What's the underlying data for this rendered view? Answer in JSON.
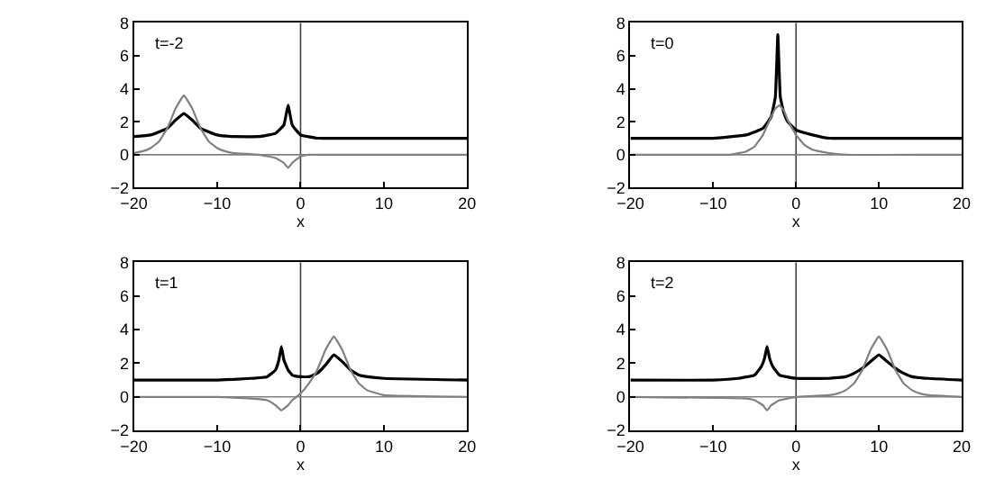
{
  "chart_data": [
    {
      "type": "line",
      "xlabel": "x",
      "annotations": [
        "t=-2"
      ],
      "xlim": [
        -20,
        20
      ],
      "xticks": [
        -20,
        -10,
        0,
        10,
        20
      ],
      "ylim": [
        -2,
        8
      ],
      "yticks": [
        -2,
        0,
        2,
        4,
        6,
        8
      ],
      "grid": false,
      "marker": "none",
      "line_style": "solid",
      "ref_lines": [
        {
          "axis": "x",
          "value": 0,
          "color": "#404040"
        },
        {
          "axis": "y",
          "value": 0,
          "color": "#808080"
        }
      ],
      "series": [
        {
          "color": "#000000",
          "x": [
            -20,
            -18,
            -16,
            -15,
            -14,
            -13,
            -12,
            -10,
            -8,
            -5,
            -3,
            -2,
            -1.5,
            -1,
            0,
            2,
            5,
            10,
            20
          ],
          "values": [
            1.1,
            1.2,
            1.6,
            2.1,
            2.5,
            2.1,
            1.6,
            1.2,
            1.1,
            1.1,
            1.3,
            1.8,
            3.0,
            1.8,
            1.2,
            1.0,
            1.0,
            1.0,
            1.0
          ]
        },
        {
          "color": "#808080",
          "x": [
            -20,
            -19,
            -18,
            -17,
            -16,
            -15,
            -14,
            -13,
            -12,
            -11,
            -10,
            -9,
            -8,
            -5,
            -3,
            -2,
            -1.5,
            -1,
            0,
            1,
            3,
            10,
            20
          ],
          "values": [
            0.1,
            0.2,
            0.4,
            0.8,
            1.6,
            2.8,
            3.6,
            2.8,
            1.6,
            0.8,
            0.4,
            0.2,
            0.1,
            0,
            -0.2,
            -0.5,
            -0.8,
            -0.5,
            -0.1,
            0,
            0,
            0,
            0
          ]
        }
      ]
    },
    {
      "type": "line",
      "xlabel": "x",
      "annotations": [
        "t=0"
      ],
      "xlim": [
        -20,
        20
      ],
      "xticks": [
        -20,
        -10,
        0,
        10,
        20
      ],
      "ylim": [
        -2,
        8
      ],
      "yticks": [
        -2,
        0,
        2,
        4,
        6,
        8
      ],
      "grid": false,
      "marker": "none",
      "line_style": "solid",
      "ref_lines": [
        {
          "axis": "x",
          "value": 0,
          "color": "#404040"
        },
        {
          "axis": "y",
          "value": 0,
          "color": "#808080"
        }
      ],
      "series": [
        {
          "color": "#000000",
          "x": [
            -20,
            -10,
            -6,
            -4,
            -3,
            -2.5,
            -2.2,
            -1.9,
            -1.5,
            -1,
            0,
            2,
            4,
            10,
            20
          ],
          "values": [
            1.0,
            1.0,
            1.2,
            1.6,
            2.3,
            3.5,
            7.3,
            3.5,
            2.6,
            2.0,
            1.5,
            1.2,
            1.0,
            1.0,
            1.0
          ]
        },
        {
          "color": "#808080",
          "x": [
            -20,
            -10,
            -8,
            -6,
            -5,
            -4,
            -3,
            -2.5,
            -2,
            -1.5,
            -1,
            0,
            1,
            2,
            4,
            6,
            20
          ],
          "values": [
            0,
            0,
            0,
            0.2,
            0.5,
            1.2,
            2.3,
            2.8,
            3.0,
            2.7,
            2.1,
            1.2,
            0.6,
            0.3,
            0.1,
            0,
            0
          ]
        }
      ]
    },
    {
      "type": "line",
      "xlabel": "x",
      "annotations": [
        "t=1"
      ],
      "xlim": [
        -20,
        20
      ],
      "xticks": [
        -20,
        -10,
        0,
        10,
        20
      ],
      "ylim": [
        -2,
        8
      ],
      "yticks": [
        -2,
        0,
        2,
        4,
        6,
        8
      ],
      "grid": false,
      "marker": "none",
      "line_style": "solid",
      "ref_lines": [
        {
          "axis": "x",
          "value": 0,
          "color": "#404040"
        },
        {
          "axis": "y",
          "value": 0,
          "color": "#808080"
        }
      ],
      "series": [
        {
          "color": "#000000",
          "x": [
            -20,
            -10,
            -6,
            -4,
            -3,
            -2.6,
            -2.3,
            -2,
            -1.5,
            -1,
            0,
            1,
            2,
            3,
            4,
            5,
            6,
            7,
            8,
            10,
            20
          ],
          "values": [
            1.0,
            1.0,
            1.1,
            1.2,
            1.6,
            2.2,
            3.0,
            2.2,
            1.6,
            1.3,
            1.2,
            1.2,
            1.4,
            1.9,
            2.5,
            2.1,
            1.6,
            1.3,
            1.2,
            1.1,
            1.0
          ]
        },
        {
          "color": "#808080",
          "x": [
            -20,
            -10,
            -6,
            -4,
            -3,
            -2.3,
            -1.5,
            -1,
            0,
            1,
            2,
            3,
            4,
            5,
            6,
            7,
            8,
            10,
            20
          ],
          "values": [
            0,
            0,
            -0.1,
            -0.2,
            -0.5,
            -0.8,
            -0.5,
            -0.2,
            0.2,
            0.8,
            1.6,
            2.8,
            3.6,
            2.8,
            1.6,
            0.8,
            0.4,
            0.1,
            0
          ]
        }
      ]
    },
    {
      "type": "line",
      "xlabel": "x",
      "annotations": [
        "t=2"
      ],
      "xlim": [
        -20,
        20
      ],
      "xticks": [
        -20,
        -10,
        0,
        10,
        20
      ],
      "ylim": [
        -2,
        8
      ],
      "yticks": [
        -2,
        0,
        2,
        4,
        6,
        8
      ],
      "grid": false,
      "marker": "none",
      "line_style": "solid",
      "ref_lines": [
        {
          "axis": "x",
          "value": 0,
          "color": "#404040"
        },
        {
          "axis": "y",
          "value": 0,
          "color": "#808080"
        }
      ],
      "series": [
        {
          "color": "#000000",
          "x": [
            -20,
            -10,
            -7,
            -5,
            -4.2,
            -3.8,
            -3.5,
            -3.2,
            -2.8,
            -2,
            0,
            4,
            6,
            7,
            8,
            9,
            10,
            11,
            12,
            13,
            14,
            16,
            20
          ],
          "values": [
            1.0,
            1.0,
            1.1,
            1.3,
            1.8,
            2.3,
            3.0,
            2.3,
            1.8,
            1.3,
            1.1,
            1.1,
            1.2,
            1.4,
            1.7,
            2.1,
            2.5,
            2.1,
            1.7,
            1.4,
            1.2,
            1.1,
            1.0
          ]
        },
        {
          "color": "#808080",
          "x": [
            -20,
            -6,
            -5,
            -4,
            -3.5,
            -3,
            -2,
            -1,
            0,
            4,
            5,
            6,
            7,
            8,
            9,
            10,
            11,
            12,
            13,
            14,
            15,
            16,
            20
          ],
          "values": [
            0,
            -0.1,
            -0.2,
            -0.5,
            -0.8,
            -0.5,
            -0.2,
            -0.1,
            0,
            0.1,
            0.2,
            0.4,
            0.8,
            1.6,
            2.8,
            3.6,
            2.8,
            1.6,
            0.8,
            0.4,
            0.2,
            0.1,
            0
          ]
        }
      ]
    }
  ]
}
